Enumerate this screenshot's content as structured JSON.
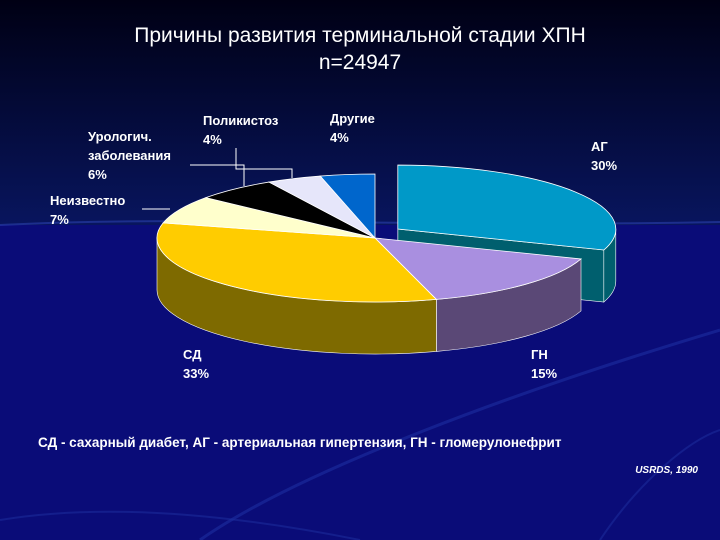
{
  "slide": {
    "title_line1": "Причины развития терминальной  стадии ХПН",
    "title_line2": "n=24947",
    "footnote": "СД - сахарный диабет, АГ - артериальная гипертензия, ГН - гломерулонефрит",
    "source": "USRDS, 1990"
  },
  "chart_data": {
    "type": "pie",
    "title": "",
    "three_d": true,
    "slices": [
      {
        "label": "АГ",
        "value": 30,
        "value_label": "30%",
        "color": "#0099c8",
        "side_color": "#005f6e",
        "exploded": true
      },
      {
        "label": "ГН",
        "value": 15,
        "value_label": "15%",
        "color": "#a98fe0",
        "side_color": "#5a4876"
      },
      {
        "label": "СД",
        "value": 33,
        "value_label": "33%",
        "color": "#ffcc00",
        "side_color": "#7e6a00"
      },
      {
        "label": "Неизвестно",
        "value": 7,
        "value_label": "7%",
        "color": "#ffffcc",
        "side_color": "#8c8c6e"
      },
      {
        "label": "Урологич. заболевания",
        "label_lines": [
          "Урологич.",
          "заболевания"
        ],
        "value": 6,
        "value_label": "6%",
        "color": "#000000",
        "side_color": "#000000"
      },
      {
        "label": "Поликистоз",
        "value": 4,
        "value_label": "4%",
        "color": "#e6e6fa",
        "side_color": "#8a8aa6"
      },
      {
        "label": "Другие",
        "value": 4,
        "value_label": "4%",
        "color": "#0066cc",
        "side_color": "#003a78"
      }
    ]
  }
}
